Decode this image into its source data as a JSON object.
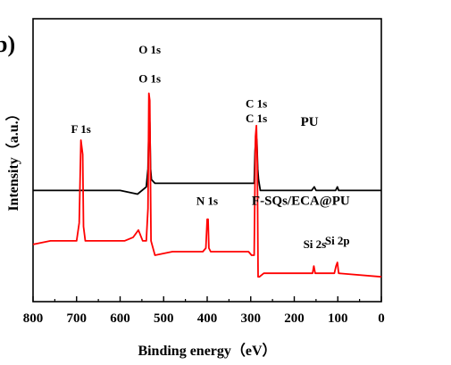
{
  "panel_label": "b)",
  "chart_data": {
    "type": "line",
    "xlabel": "Binding energy（eV）",
    "ylabel": "Intensity（a.u.）",
    "xlim": [
      800,
      0
    ],
    "x_reversed": true,
    "xticks": [
      800,
      700,
      600,
      500,
      400,
      300,
      200,
      100,
      0
    ],
    "y_tick_labels": false,
    "series": [
      {
        "name": "PU",
        "color": "#000000",
        "points": [
          [
            800,
            0.17
          ],
          [
            700,
            0.17
          ],
          [
            600,
            0.17
          ],
          [
            560,
            0.16
          ],
          [
            540,
            0.18
          ],
          [
            536,
            0.23
          ],
          [
            534,
            0.34
          ],
          [
            532,
            0.36
          ],
          [
            530,
            0.23
          ],
          [
            528,
            0.2
          ],
          [
            520,
            0.19
          ],
          [
            480,
            0.19
          ],
          [
            420,
            0.19
          ],
          [
            400,
            0.19
          ],
          [
            320,
            0.19
          ],
          [
            292,
            0.19
          ],
          [
            290,
            0.28
          ],
          [
            288,
            0.32
          ],
          [
            286,
            0.31
          ],
          [
            284,
            0.23
          ],
          [
            282,
            0.2
          ],
          [
            278,
            0.17
          ],
          [
            270,
            0.17
          ],
          [
            200,
            0.17
          ],
          [
            160,
            0.17
          ],
          [
            154,
            0.18
          ],
          [
            150,
            0.17
          ],
          [
            105,
            0.17
          ],
          [
            101,
            0.18
          ],
          [
            98,
            0.17
          ],
          [
            0,
            0.17
          ]
        ]
      },
      {
        "name": "F-SQs/ECA@PU",
        "color": "#ff0000",
        "points": [
          [
            800,
            0.02
          ],
          [
            760,
            0.03
          ],
          [
            720,
            0.03
          ],
          [
            700,
            0.03
          ],
          [
            694,
            0.08
          ],
          [
            690,
            0.31
          ],
          [
            686,
            0.27
          ],
          [
            684,
            0.07
          ],
          [
            680,
            0.03
          ],
          [
            660,
            0.03
          ],
          [
            620,
            0.03
          ],
          [
            590,
            0.03
          ],
          [
            570,
            0.04
          ],
          [
            558,
            0.06
          ],
          [
            548,
            0.03
          ],
          [
            540,
            0.03
          ],
          [
            536,
            0.12
          ],
          [
            534,
            0.44
          ],
          [
            532,
            0.42
          ],
          [
            529,
            0.03
          ],
          [
            520,
            -0.01
          ],
          [
            480,
            0.0
          ],
          [
            440,
            0.0
          ],
          [
            410,
            0.0
          ],
          [
            403,
            0.01
          ],
          [
            400,
            0.09
          ],
          [
            398,
            0.09
          ],
          [
            396,
            0.01
          ],
          [
            392,
            0.0
          ],
          [
            340,
            0.0
          ],
          [
            305,
            0.0
          ],
          [
            298,
            -0.01
          ],
          [
            292,
            -0.01
          ],
          [
            289,
            0.32
          ],
          [
            287,
            0.35
          ],
          [
            285,
            0.25
          ],
          [
            283,
            -0.07
          ],
          [
            280,
            -0.07
          ],
          [
            270,
            -0.06
          ],
          [
            200,
            -0.06
          ],
          [
            158,
            -0.06
          ],
          [
            155,
            -0.04
          ],
          [
            152,
            -0.06
          ],
          [
            108,
            -0.06
          ],
          [
            104,
            -0.04
          ],
          [
            101,
            -0.03
          ],
          [
            98,
            -0.06
          ],
          [
            0,
            -0.07
          ]
        ]
      }
    ],
    "peak_labels": [
      {
        "text": "O 1s",
        "x": 532,
        "y": 0.55
      },
      {
        "text": "C 1s",
        "x": 287,
        "y": 0.4
      },
      {
        "text": "F 1s",
        "x": 690,
        "y": 0.33
      },
      {
        "text": "O 1s",
        "x": 532,
        "y": 0.47
      },
      {
        "text": "C 1s",
        "x": 287,
        "y": 0.36
      },
      {
        "text": "N 1s",
        "x": 400,
        "y": 0.13
      },
      {
        "text": "Si 2s",
        "x": 153,
        "y": 0.01
      },
      {
        "text": "Si 2p",
        "x": 101,
        "y": 0.02
      }
    ],
    "series_labels": [
      {
        "text": "PU",
        "x": 165,
        "y": 0.35
      },
      {
        "text": "F-SQs/ECA@PU",
        "x": 185,
        "y": 0.13
      }
    ]
  }
}
